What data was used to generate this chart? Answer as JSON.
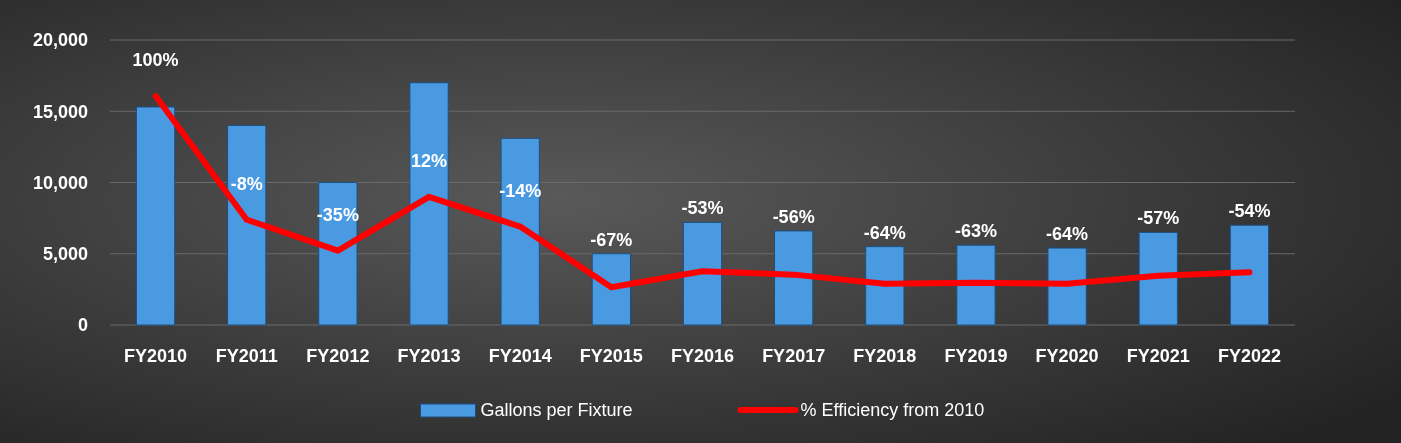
{
  "chart_data": {
    "type": "bar",
    "categories": [
      "FY2010",
      "FY2011",
      "FY2012",
      "FY2013",
      "FY2014",
      "FY2015",
      "FY2016",
      "FY2017",
      "FY2018",
      "FY2019",
      "FY2020",
      "FY2021",
      "FY2022"
    ],
    "series": [
      {
        "name": "Gallons per Fixture",
        "color": "#4a9ae2",
        "values": [
          15300,
          14000,
          10000,
          17000,
          13100,
          5000,
          7200,
          6600,
          5500,
          5600,
          5400,
          6500,
          7000
        ]
      },
      {
        "name": "% Efficiency from 2010",
        "type": "line",
        "axis": "y2",
        "color": "#ff0000",
        "values": [
          100,
          -8,
          -35,
          12,
          -14,
          -67,
          -53,
          -56,
          -64,
          -63,
          -64,
          -57,
          -54
        ],
        "value_labels": [
          "100%",
          "-8%",
          "-35%",
          "12%",
          "-14%",
          "-67%",
          "-53%",
          "-56%",
          "-64%",
          "-63%",
          "-64%",
          "-57%",
          "-54%"
        ]
      }
    ],
    "ylim": [
      0,
      20000
    ],
    "yticks": [
      {
        "value": 0,
        "label": "0"
      },
      {
        "value": 5000,
        "label": "5,000"
      },
      {
        "value": 10000,
        "label": "10,000"
      },
      {
        "value": 15000,
        "label": "15,000"
      },
      {
        "value": 20000,
        "label": "20,000"
      }
    ],
    "y2lim": [
      -100,
      149
    ],
    "grid": "y",
    "legend": "bottom",
    "marker": "none",
    "line_style": "solid"
  }
}
